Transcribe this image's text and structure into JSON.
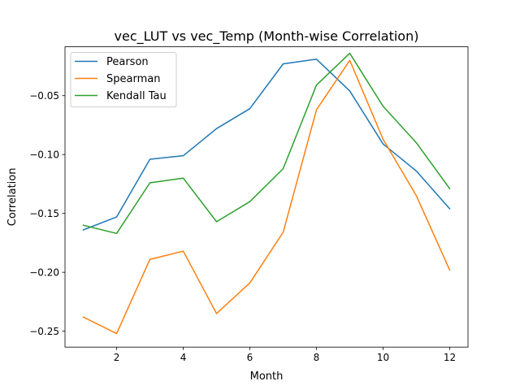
{
  "chart_data": {
    "type": "line",
    "title": "vec_LUT vs vec_Temp (Month-wise Correlation)",
    "xlabel": "Month",
    "ylabel": "Correlation",
    "x": [
      1,
      2,
      3,
      4,
      5,
      6,
      7,
      8,
      9,
      10,
      11,
      12
    ],
    "xlim": [
      0.45,
      12.55
    ],
    "ylim": [
      -0.2635,
      -0.0085
    ],
    "xticks": [
      2,
      4,
      6,
      8,
      10,
      12
    ],
    "xtick_labels": [
      "2",
      "4",
      "6",
      "8",
      "10",
      "12"
    ],
    "yticks": [
      -0.25,
      -0.2,
      -0.15,
      -0.1,
      -0.05
    ],
    "ytick_labels": [
      "−0.25",
      "−0.20",
      "−0.15",
      "−0.10",
      "−0.05"
    ],
    "grid": false,
    "legend_position": "top-left",
    "series": [
      {
        "name": "Pearson",
        "color": "#1f77b4",
        "values": [
          -0.164,
          -0.153,
          -0.104,
          -0.101,
          -0.078,
          -0.061,
          -0.023,
          -0.019,
          -0.046,
          -0.091,
          -0.114,
          -0.146
        ]
      },
      {
        "name": "Spearman",
        "color": "#ff7f0e",
        "values": [
          -0.238,
          -0.252,
          -0.189,
          -0.182,
          -0.235,
          -0.209,
          -0.166,
          -0.062,
          -0.02,
          -0.087,
          -0.135,
          -0.198
        ]
      },
      {
        "name": "Kendall Tau",
        "color": "#2ca02c",
        "values": [
          -0.16,
          -0.167,
          -0.124,
          -0.12,
          -0.157,
          -0.14,
          -0.112,
          -0.041,
          -0.014,
          -0.059,
          -0.09,
          -0.129
        ]
      }
    ]
  }
}
